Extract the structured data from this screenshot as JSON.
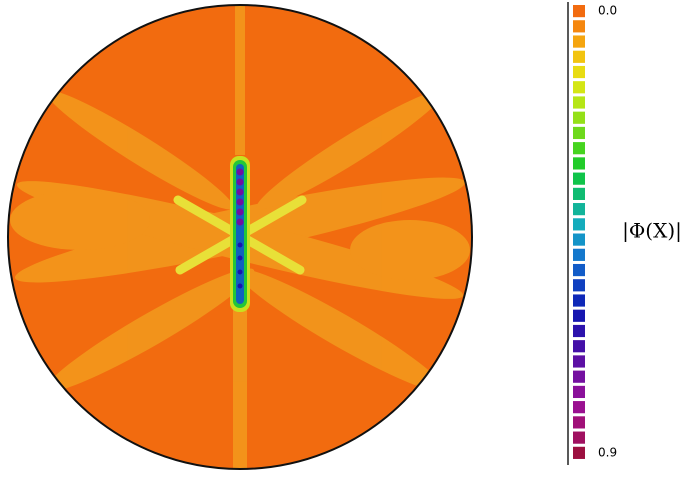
{
  "chart_data": {
    "type": "contour",
    "colorbar_label": "|Φ(X)|",
    "zlim": [
      0,
      0.9
    ],
    "zticks": [
      {
        "value": 0,
        "label": "0.0"
      },
      {
        "value": 0.9,
        "label": "0.9"
      }
    ],
    "colors": [
      "#f26b0f",
      "#f5870f",
      "#f5a50f",
      "#f2c40f",
      "#e8dc12",
      "#d4e614",
      "#b6e616",
      "#94e018",
      "#6ed91c",
      "#46d420",
      "#22cc2a",
      "#10c44a",
      "#10bc72",
      "#12b49a",
      "#14acbc",
      "#1494c8",
      "#1478cc",
      "#125cc8",
      "#1040c0",
      "#0e28b8",
      "#1616b0",
      "#2c12ac",
      "#4410a8",
      "#5c10a4",
      "#7410a0",
      "#8a109a",
      "#9a1090",
      "#a01078",
      "#a01060",
      "#9c1040"
    ]
  }
}
